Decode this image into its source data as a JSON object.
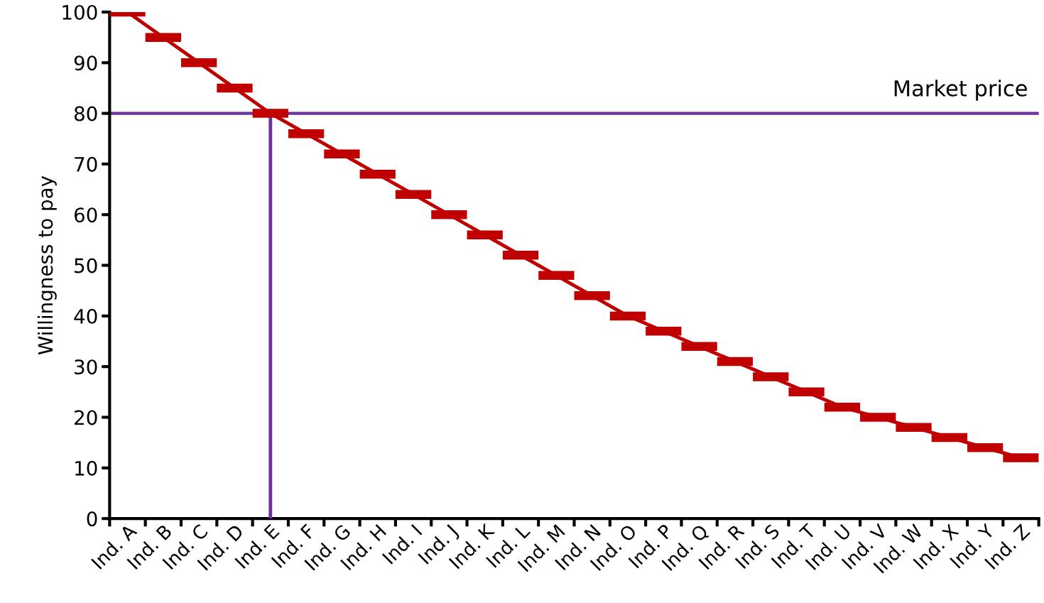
{
  "chart_data": {
    "type": "line",
    "ylabel": "Willingness to pay",
    "categories": [
      "Ind. A",
      "Ind. B",
      "Ind. C",
      "Ind. D",
      "Ind. E",
      "Ind. F",
      "Ind. G",
      "Ind. H",
      "Ind. I",
      "Ind. J",
      "Ind. K",
      "Ind. L",
      "Ind. M",
      "Ind. N",
      "Ind. O",
      "Ind. P",
      "Ind. Q",
      "Ind. R",
      "Ind. S",
      "Ind. T",
      "Ind. U",
      "Ind. V",
      "Ind. W",
      "Ind. X",
      "Ind. Y",
      "Ind. Z"
    ],
    "series": [
      {
        "color": "#c00000",
        "values": [
          100,
          95,
          90,
          85,
          80,
          76,
          72,
          68,
          64,
          60,
          56,
          52,
          48,
          44,
          40,
          37,
          34,
          31,
          28,
          25,
          22,
          20,
          18,
          16,
          14,
          12
        ]
      },
      {
        "color": "#7030a0",
        "x": [
          "Ind. E",
          "Ind. E"
        ],
        "values": [
          0,
          80
        ]
      }
    ],
    "ref_lines": [
      {
        "axis": "y",
        "value": 80,
        "label": "Market price",
        "color": "#7030a0"
      }
    ],
    "ylim": [
      0,
      100
    ],
    "yticks": [
      0,
      10,
      20,
      30,
      40,
      50,
      60,
      70,
      80,
      90,
      100
    ],
    "grid": false,
    "legend": false,
    "marker": "none",
    "line_style": "solid"
  }
}
